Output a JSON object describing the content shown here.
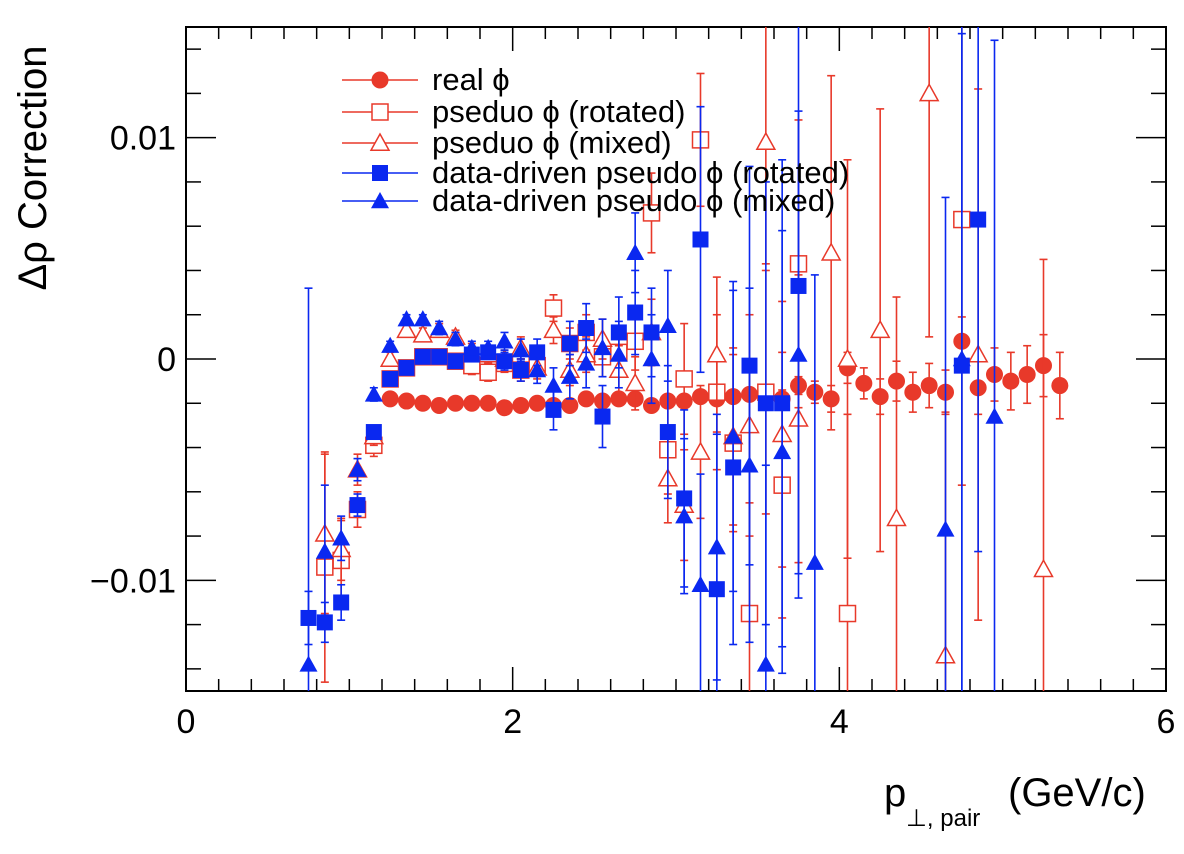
{
  "chart_data": {
    "type": "scatter",
    "title": "",
    "xlabel": "p",
    "xlabel_sub": "⊥, pair",
    "xlabel_unit": "(GeV/c)",
    "ylabel": "Δρ Correction",
    "xlim": [
      0,
      6
    ],
    "ylim": [
      -0.015,
      0.015
    ],
    "x_tick_labels": [
      "0",
      "2",
      "4",
      "6"
    ],
    "x_tick_values": [
      0,
      2,
      4,
      6
    ],
    "y_tick_labels": [
      "0.01",
      "0",
      "−0.01"
    ],
    "y_tick_values": [
      0.01,
      0,
      -0.01
    ],
    "legend_position": "top-left",
    "colors": {
      "red": "#e8392a",
      "blue": "#0a28f0"
    },
    "series": [
      {
        "name": "real ϕ",
        "color": "red",
        "marker": "circle-filled",
        "points": [
          [
            1.25,
            -0.0018,
            0.0001
          ],
          [
            1.35,
            -0.0019,
            0.0001
          ],
          [
            1.45,
            -0.002,
            0.0001
          ],
          [
            1.55,
            -0.0021,
            0.0001
          ],
          [
            1.65,
            -0.002,
            0.0001
          ],
          [
            1.75,
            -0.002,
            0.0001
          ],
          [
            1.85,
            -0.002,
            0.0001
          ],
          [
            1.95,
            -0.0022,
            0.0001
          ],
          [
            2.05,
            -0.0021,
            0.0001
          ],
          [
            2.15,
            -0.002,
            0.0001
          ],
          [
            2.25,
            -0.0021,
            0.0001
          ],
          [
            2.35,
            -0.0021,
            0.0001
          ],
          [
            2.45,
            -0.0018,
            0.0001
          ],
          [
            2.55,
            -0.0019,
            0.0001
          ],
          [
            2.65,
            -0.0018,
            0.0001
          ],
          [
            2.75,
            -0.0018,
            0.0001
          ],
          [
            2.85,
            -0.0021,
            0.0001
          ],
          [
            2.95,
            -0.0019,
            0.0002
          ],
          [
            3.05,
            -0.0019,
            0.0002
          ],
          [
            3.15,
            -0.0017,
            0.0002
          ],
          [
            3.25,
            -0.0018,
            0.0002
          ],
          [
            3.35,
            -0.0017,
            0.0003
          ],
          [
            3.45,
            -0.0016,
            0.0003
          ],
          [
            3.55,
            -0.0016,
            0.0003
          ],
          [
            3.65,
            -0.0018,
            0.0004
          ],
          [
            3.75,
            -0.0012,
            0.0004
          ],
          [
            3.85,
            -0.0015,
            0.0005
          ],
          [
            3.95,
            -0.0018,
            0.0006
          ],
          [
            4.05,
            -0.0004,
            0.0007
          ],
          [
            4.15,
            -0.0011,
            0.0007
          ],
          [
            4.25,
            -0.0017,
            0.0008
          ],
          [
            4.35,
            -0.001,
            0.0009
          ],
          [
            4.45,
            -0.0015,
            0.0009
          ],
          [
            4.55,
            -0.0012,
            0.001
          ],
          [
            4.65,
            -0.0015,
            0.001
          ],
          [
            4.75,
            0.0008,
            0.0011
          ],
          [
            4.85,
            -0.0013,
            0.0012
          ],
          [
            4.95,
            -0.0007,
            0.0012
          ],
          [
            5.05,
            -0.001,
            0.0013
          ],
          [
            5.15,
            -0.0007,
            0.0013
          ],
          [
            5.25,
            -0.0003,
            0.0014
          ],
          [
            5.35,
            -0.0012,
            0.0015
          ]
        ]
      },
      {
        "name": "pseduo ϕ (rotated)",
        "color": "red",
        "marker": "square-open",
        "points": [
          [
            0.85,
            -0.0094,
            0.0052
          ],
          [
            0.95,
            -0.0091,
            0.0018
          ],
          [
            1.05,
            -0.0068,
            0.0008
          ],
          [
            1.15,
            -0.0039,
            0.0005
          ],
          [
            1.25,
            -0.0009,
            0.0003
          ],
          [
            1.35,
            -0.0004,
            0.0003
          ],
          [
            1.45,
            0.0001,
            0.0003
          ],
          [
            1.55,
            0.0001,
            0.0003
          ],
          [
            1.65,
            -0.0001,
            0.0003
          ],
          [
            1.75,
            -0.0003,
            0.0004
          ],
          [
            1.85,
            -0.0006,
            0.0004
          ],
          [
            1.95,
            -0.0002,
            0.0004
          ],
          [
            2.05,
            -0.0005,
            0.0005
          ],
          [
            2.15,
            -0.0003,
            0.0005
          ],
          [
            2.25,
            0.0023,
            0.0006
          ],
          [
            2.35,
            0.0007,
            0.0007
          ],
          [
            2.45,
            0.0012,
            0.0008
          ],
          [
            2.55,
            0.0001,
            0.0009
          ],
          [
            2.65,
            0.0003,
            0.0011
          ],
          [
            2.75,
            0.0008,
            0.0013
          ],
          [
            2.85,
            0.0066,
            0.0018
          ],
          [
            2.95,
            -0.0041,
            0.002
          ],
          [
            3.05,
            -0.0009,
            0.0025
          ],
          [
            3.15,
            0.0099,
            0.003
          ],
          [
            3.25,
            -0.0015,
            0.0035
          ],
          [
            3.35,
            -0.0038,
            0.004
          ],
          [
            3.45,
            -0.0115,
            0.005
          ],
          [
            3.55,
            -0.0015,
            0.0055
          ],
          [
            3.65,
            -0.0057,
            0.006
          ],
          [
            3.75,
            0.0043,
            0.0065
          ],
          [
            4.05,
            -0.0115,
            0.009
          ],
          [
            4.75,
            0.0063,
            0.012
          ]
        ]
      },
      {
        "name": "pseduo ϕ (mixed)",
        "color": "red",
        "marker": "triangle-open",
        "points": [
          [
            0.85,
            -0.0079,
            0.0036
          ],
          [
            0.95,
            -0.0086,
            0.0014
          ],
          [
            1.05,
            -0.005,
            0.0007
          ],
          [
            1.15,
            -0.0035,
            0.0004
          ],
          [
            1.25,
            0.0,
            0.0003
          ],
          [
            1.35,
            0.0013,
            0.0003
          ],
          [
            1.45,
            0.0011,
            0.0003
          ],
          [
            1.55,
            0.0013,
            0.0003
          ],
          [
            1.65,
            0.001,
            0.0003
          ],
          [
            1.75,
            0.0003,
            0.0004
          ],
          [
            1.85,
            0.0002,
            0.0004
          ],
          [
            1.95,
            0.0,
            0.0004
          ],
          [
            2.05,
            0.0005,
            0.0005
          ],
          [
            2.15,
            -0.0004,
            0.0005
          ],
          [
            2.25,
            0.0013,
            0.0006
          ],
          [
            2.35,
            -0.0005,
            0.0007
          ],
          [
            2.45,
            0.0002,
            0.0008
          ],
          [
            2.55,
            0.0009,
            0.0009
          ],
          [
            2.65,
            -0.0005,
            0.0011
          ],
          [
            2.75,
            -0.0011,
            0.0012
          ],
          [
            2.85,
            0.0012,
            0.0015
          ],
          [
            2.95,
            -0.0054,
            0.002
          ],
          [
            3.05,
            -0.0066,
            0.0025
          ],
          [
            3.15,
            -0.0042,
            0.003
          ],
          [
            3.25,
            0.0002,
            0.0035
          ],
          [
            3.35,
            -0.0035,
            0.004
          ],
          [
            3.45,
            -0.003,
            0.005
          ],
          [
            3.55,
            0.0098,
            0.0055
          ],
          [
            3.65,
            -0.0034,
            0.006
          ],
          [
            3.75,
            -0.0027,
            0.0065
          ],
          [
            3.95,
            0.0048,
            0.008
          ],
          [
            4.05,
            0.0,
            0.009
          ],
          [
            4.25,
            0.0013,
            0.01
          ],
          [
            4.35,
            -0.0072,
            0.01
          ],
          [
            4.55,
            0.012,
            0.011
          ],
          [
            4.65,
            -0.0134,
            0.011
          ],
          [
            4.85,
            0.0002,
            0.012
          ],
          [
            5.25,
            -0.0095,
            0.014
          ]
        ]
      },
      {
        "name": "data-driven pseudo ϕ (rotated)",
        "color": "blue",
        "marker": "square-filled",
        "points": [
          [
            0.75,
            -0.0117,
            0.0012
          ],
          [
            0.85,
            -0.0119,
            0.0009
          ],
          [
            0.95,
            -0.011,
            0.0008
          ],
          [
            1.05,
            -0.0066,
            0.0005
          ],
          [
            1.15,
            -0.0033,
            0.0003
          ],
          [
            1.25,
            -0.0009,
            0.0002
          ],
          [
            1.35,
            -0.0004,
            0.0002
          ],
          [
            1.45,
            0.0001,
            0.0002
          ],
          [
            1.55,
            0.0001,
            0.0003
          ],
          [
            1.65,
            -0.0001,
            0.0003
          ],
          [
            1.75,
            0.0002,
            0.0003
          ],
          [
            1.85,
            0.0003,
            0.0003
          ],
          [
            1.95,
            -0.0001,
            0.0004
          ],
          [
            2.05,
            -0.0005,
            0.0005
          ],
          [
            2.15,
            0.0003,
            0.0006
          ],
          [
            2.25,
            -0.0023,
            0.0009
          ],
          [
            2.35,
            0.0007,
            0.001
          ],
          [
            2.45,
            0.0014,
            0.0011
          ],
          [
            2.55,
            -0.0026,
            0.0014
          ],
          [
            2.65,
            0.0012,
            0.0016
          ],
          [
            2.75,
            0.0021,
            0.0019
          ],
          [
            2.85,
            0.0012,
            0.002
          ],
          [
            2.95,
            -0.0033,
            0.003
          ],
          [
            3.05,
            -0.0063,
            0.004
          ],
          [
            3.15,
            0.0054,
            0.006
          ],
          [
            3.25,
            -0.0104,
            0.007
          ],
          [
            3.35,
            -0.0049,
            0.008
          ],
          [
            3.45,
            -0.0003,
            0.009
          ],
          [
            3.55,
            -0.002,
            0.01
          ],
          [
            3.65,
            -0.002,
            0.011
          ],
          [
            3.75,
            0.0033,
            0.013
          ],
          [
            4.75,
            -0.0003,
            0.015
          ],
          [
            4.85,
            0.0063,
            0.015
          ]
        ]
      },
      {
        "name": "data-driven pseudo ϕ (mixed)",
        "color": "blue",
        "marker": "triangle-filled",
        "points": [
          [
            0.75,
            -0.0138,
            0.017
          ],
          [
            0.85,
            -0.0087,
            0.003
          ],
          [
            0.95,
            -0.0081,
            0.001
          ],
          [
            1.05,
            -0.005,
            0.0005
          ],
          [
            1.15,
            -0.0016,
            0.0003
          ],
          [
            1.25,
            0.0006,
            0.0002
          ],
          [
            1.35,
            0.0018,
            0.0002
          ],
          [
            1.45,
            0.0018,
            0.0002
          ],
          [
            1.55,
            0.0014,
            0.0003
          ],
          [
            1.65,
            0.0009,
            0.0003
          ],
          [
            1.75,
            0.0005,
            0.0003
          ],
          [
            1.85,
            0.0005,
            0.0003
          ],
          [
            1.95,
            0.0008,
            0.0004
          ],
          [
            2.05,
            0.0004,
            0.0005
          ],
          [
            2.15,
            -0.0005,
            0.0006
          ],
          [
            2.25,
            -0.0012,
            0.0008
          ],
          [
            2.35,
            -0.0008,
            0.001
          ],
          [
            2.45,
            -0.0002,
            0.0011
          ],
          [
            2.55,
            0.0005,
            0.0013
          ],
          [
            2.65,
            0.0002,
            0.0015
          ],
          [
            2.75,
            0.0048,
            0.0018
          ],
          [
            2.85,
            0.0,
            0.002
          ],
          [
            2.95,
            0.0015,
            0.0025
          ],
          [
            3.05,
            -0.0071,
            0.0035
          ],
          [
            3.15,
            -0.0102,
            0.005
          ],
          [
            3.25,
            -0.0085,
            0.006
          ],
          [
            3.35,
            -0.0035,
            0.007
          ],
          [
            3.45,
            -0.0048,
            0.008
          ],
          [
            3.55,
            -0.0138,
            0.009
          ],
          [
            3.65,
            -0.0042,
            0.01
          ],
          [
            3.75,
            0.0002,
            0.011
          ],
          [
            3.85,
            -0.0092,
            0.013
          ],
          [
            4.65,
            -0.0077,
            0.015
          ],
          [
            4.75,
            0.0,
            0.016
          ],
          [
            4.95,
            -0.0026,
            0.017
          ]
        ]
      }
    ]
  }
}
